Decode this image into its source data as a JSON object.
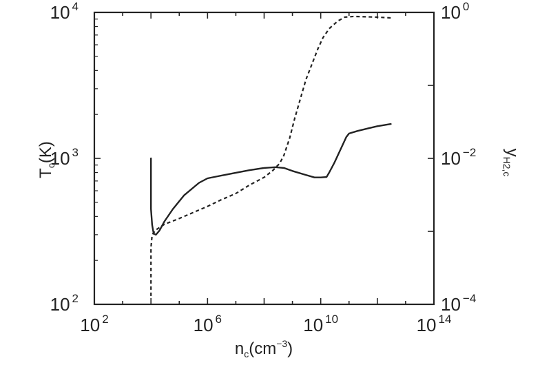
{
  "chart_data": {
    "type": "line",
    "x_axis": {
      "label": {
        "main": "n",
        "sub": "c",
        "unit": "(cm",
        "exp": "−3",
        "close": ")"
      },
      "scale": "log",
      "range": [
        100,
        100000000000000
      ],
      "ticks": [
        {
          "value": 100,
          "base": "10",
          "exp": "2"
        },
        {
          "value": 1000000,
          "base": "10",
          "exp": "6"
        },
        {
          "value": 10000000000,
          "base": "10",
          "exp": "10"
        },
        {
          "value": 100000000000000,
          "base": "10",
          "exp": "14"
        }
      ]
    },
    "y_axis_left": {
      "label": {
        "main": "T",
        "sub": "c",
        "unit": "(K)"
      },
      "scale": "log",
      "range": [
        100,
        10000
      ],
      "ticks": [
        {
          "value": 100,
          "base": "10",
          "exp": "2"
        },
        {
          "value": 1000,
          "base": "10",
          "exp": "3"
        },
        {
          "value": 10000,
          "base": "10",
          "exp": "4"
        }
      ]
    },
    "y_axis_right": {
      "label": {
        "main": "y",
        "sub": "H2,c"
      },
      "scale": "log",
      "range": [
        0.0001,
        1
      ],
      "ticks": [
        {
          "value": 0.0001,
          "base": "10",
          "exp": "−4"
        },
        {
          "value": 0.01,
          "base": "10",
          "exp": "−2"
        },
        {
          "value": 1,
          "base": "10",
          "exp": "0"
        }
      ]
    },
    "grid": false,
    "legend": "none",
    "series": [
      {
        "axis": "left",
        "style": "solid",
        "color": "#222222",
        "points": [
          [
            10000,
            1000
          ],
          [
            10000,
            600
          ],
          [
            10000,
            450
          ],
          [
            11000,
            350
          ],
          [
            12500,
            305
          ],
          [
            15000,
            300
          ],
          [
            20000,
            320
          ],
          [
            30000,
            370
          ],
          [
            60000,
            450
          ],
          [
            150000,
            560
          ],
          [
            500000,
            680
          ],
          [
            1000000,
            730
          ],
          [
            2000000,
            750
          ],
          [
            8000000,
            790
          ],
          [
            30000000,
            830
          ],
          [
            100000000,
            860
          ],
          [
            250000000,
            870
          ],
          [
            500000000,
            860
          ],
          [
            1000000000,
            820
          ],
          [
            3000000000,
            770
          ],
          [
            6000000000,
            740
          ],
          [
            10000000000,
            740
          ],
          [
            16000000000,
            745
          ],
          [
            20000000000,
            800
          ],
          [
            30000000000,
            930
          ],
          [
            50000000000,
            1150
          ],
          [
            80000000000,
            1400
          ],
          [
            100000000000,
            1480
          ],
          [
            200000000000,
            1540
          ],
          [
            500000000000,
            1610
          ],
          [
            1000000000000,
            1660
          ],
          [
            3000000000000,
            1720
          ]
        ]
      },
      {
        "axis": "right",
        "style": "dashed",
        "color": "#222222",
        "points": [
          [
            10000,
            0.00013
          ],
          [
            10000,
            0.0006
          ],
          [
            11000,
            0.0009
          ],
          [
            15000,
            0.00105
          ],
          [
            30000,
            0.00125
          ],
          [
            100000,
            0.0015
          ],
          [
            300000,
            0.0018
          ],
          [
            1000000,
            0.0022
          ],
          [
            3000000,
            0.0027
          ],
          [
            10000000,
            0.0033
          ],
          [
            30000000,
            0.0043
          ],
          [
            100000000,
            0.0055
          ],
          [
            200000000,
            0.0068
          ],
          [
            350000000,
            0.0085
          ],
          [
            500000000,
            0.011
          ],
          [
            800000000,
            0.019
          ],
          [
            1200000000,
            0.035
          ],
          [
            2000000000,
            0.07
          ],
          [
            3000000000,
            0.12
          ],
          [
            5000000000,
            0.2
          ],
          [
            8000000000,
            0.32
          ],
          [
            12000000000,
            0.45
          ],
          [
            20000000000,
            0.6
          ],
          [
            40000000000,
            0.76
          ],
          [
            70000000000,
            0.86
          ],
          [
            150000000000,
            0.88
          ],
          [
            400000000000,
            0.87
          ],
          [
            1000000000000,
            0.86
          ],
          [
            3000000000000,
            0.84
          ]
        ]
      }
    ]
  }
}
